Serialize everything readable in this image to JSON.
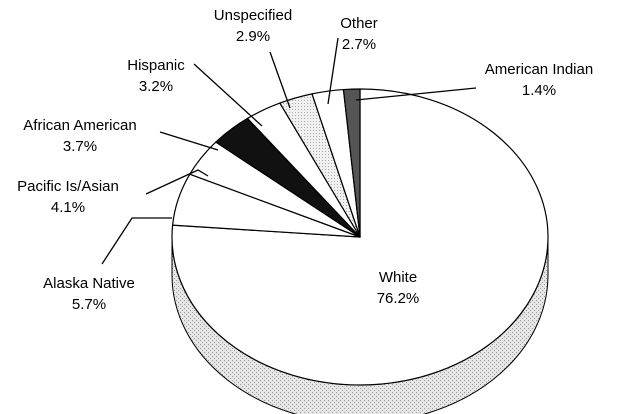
{
  "chart_data": {
    "type": "pie",
    "title": "",
    "slices": [
      {
        "label": "White",
        "value": 76.2,
        "value_text": "76.2%",
        "color": "#ffffff"
      },
      {
        "label": "Alaska Native",
        "value": 5.7,
        "value_text": "5.7%",
        "color": "#ffffff"
      },
      {
        "label": "Pacific Is/Asian",
        "value": 4.1,
        "value_text": "4.1%",
        "color": "#ffffff"
      },
      {
        "label": "African American",
        "value": 3.7,
        "value_text": "3.7%",
        "color": "#111111"
      },
      {
        "label": "Hispanic",
        "value": 3.2,
        "value_text": "3.2%",
        "color": "#ffffff"
      },
      {
        "label": "Unspecified",
        "value": 2.9,
        "value_text": "2.9%",
        "color": "#d9d9d9"
      },
      {
        "label": "Other",
        "value": 2.7,
        "value_text": "2.7%",
        "color": "#ffffff"
      },
      {
        "label": "American Indian",
        "value": 1.4,
        "value_text": "1.4%",
        "color": "#555555"
      }
    ]
  }
}
